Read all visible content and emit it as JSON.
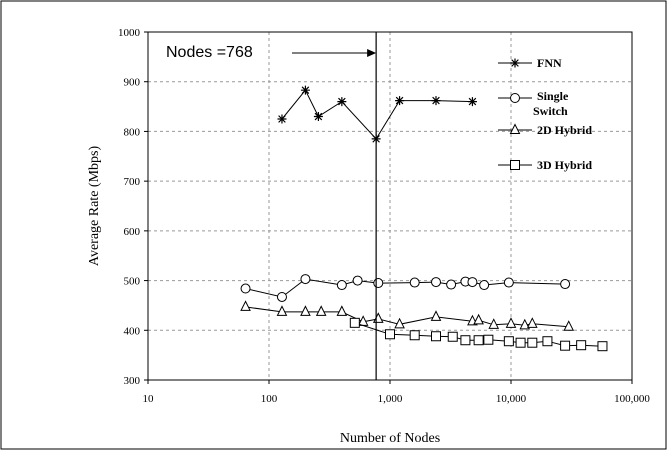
{
  "chart_data": {
    "type": "line",
    "xlabel": "Number of Nodes",
    "ylabel": "Average Rate (Mbps)",
    "x_scale": "log",
    "xlim": [
      10,
      100000
    ],
    "ylim": [
      300,
      1000
    ],
    "x_tick_labels": [
      "10",
      "100",
      "1,000",
      "10,000",
      "100,000"
    ],
    "y_tick_labels": [
      "300",
      "400",
      "500",
      "600",
      "700",
      "800",
      "900",
      "1000"
    ],
    "grid": true,
    "legend_position": "right",
    "annotation": {
      "text": "Nodes =768",
      "x": 768
    },
    "series": [
      {
        "name": "FNN",
        "marker": "star",
        "x": [
          128,
          200,
          256,
          400,
          768,
          1200,
          2400,
          4800
        ],
        "y": [
          825,
          883,
          830,
          860,
          785,
          862,
          862,
          860
        ]
      },
      {
        "name": "Single Switch",
        "name_lines": [
          "Single",
          "Switch"
        ],
        "marker": "circle",
        "x": [
          64,
          128,
          200,
          400,
          540,
          800,
          1600,
          2400,
          3200,
          4200,
          4800,
          6000,
          9600,
          28000
        ],
        "y": [
          484,
          467,
          503,
          491,
          500,
          495,
          496,
          497,
          492,
          498,
          497,
          491,
          496,
          493
        ]
      },
      {
        "name": "2D Hybrid",
        "marker": "triangle",
        "x": [
          64,
          128,
          200,
          270,
          400,
          600,
          800,
          1200,
          2400,
          4800,
          5400,
          7200,
          10000,
          13000,
          15000,
          30000
        ],
        "y": [
          447,
          437,
          437,
          437,
          437,
          417,
          423,
          412,
          427,
          418,
          420,
          411,
          413,
          410,
          413,
          407
        ]
      },
      {
        "name": "3D Hybrid",
        "marker": "square",
        "x": [
          512,
          1000,
          1600,
          2400,
          3300,
          4200,
          5400,
          6500,
          9600,
          12000,
          15000,
          20000,
          28000,
          38000,
          57000
        ],
        "y": [
          415,
          392,
          390,
          388,
          387,
          380,
          380,
          381,
          378,
          375,
          375,
          378,
          369,
          370,
          368
        ]
      }
    ]
  }
}
